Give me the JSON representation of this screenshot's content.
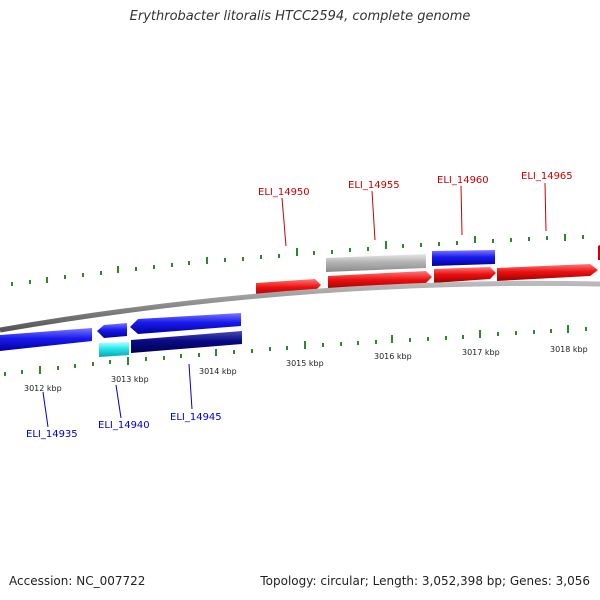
{
  "title": "Erythrobacter litoralis HTCC2594, complete genome",
  "footer": {
    "accession": "Accession: NC_007722",
    "topology": "Topology: circular; Length: 3,052,398 bp; Genes: 3,056"
  },
  "scale_labels": [
    "3012 kbp",
    "3013 kbp",
    "3014 kbp",
    "3015 kbp",
    "3016 kbp",
    "3017 kbp",
    "3018 kbp"
  ],
  "genes_top": [
    "ELI_14950",
    "ELI_14955",
    "ELI_14960",
    "ELI_14965"
  ],
  "genes_bottom": [
    "ELI_14935",
    "ELI_14940",
    "ELI_14945"
  ],
  "colors": {
    "forward": "#ee1111",
    "reverse_blue": "#1a1aee",
    "reverse_cyan": "#22e6ee",
    "reverse_navy": "#0a0a88",
    "rna_gray": "#b4b4b4",
    "tick": "#2a8a2a",
    "label_top": "#cc0000",
    "label_bottom": "#0000cc",
    "backbone": "#888888"
  }
}
